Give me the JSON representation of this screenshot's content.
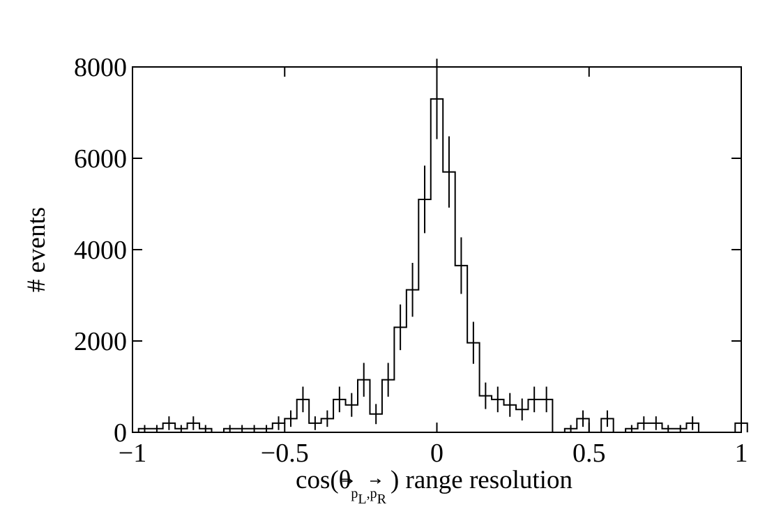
{
  "chart_data": {
    "type": "histogram",
    "xlabel": {
      "prefix": "cos(θ",
      "sub1": "p",
      "sub1_index": "L",
      "sep": ",",
      "sub2": "p",
      "sub2_index": "R",
      "suffix": ") range resolution"
    },
    "ylabel": "# events",
    "xlim": [
      -1,
      1
    ],
    "ylim": [
      0,
      8000
    ],
    "xticks": [
      -1,
      -0.5,
      0,
      0.5,
      1
    ],
    "xtick_labels": [
      "−1",
      "−0.5",
      "0",
      "0.5",
      "1"
    ],
    "yticks": [
      0,
      2000,
      4000,
      6000,
      8000
    ],
    "ytick_labels": [
      "0",
      "2000",
      "4000",
      "6000",
      "8000"
    ],
    "grid": false,
    "bin_edges": [
      -0.98,
      1.0
    ],
    "bin_width": 0.04,
    "values": [
      80,
      80,
      200,
      80,
      200,
      80,
      0,
      80,
      80,
      80,
      80,
      200,
      300,
      720,
      200,
      300,
      720,
      600,
      1150,
      400,
      1150,
      2300,
      3120,
      5100,
      7300,
      5700,
      3650,
      1960,
      800,
      720,
      600,
      500,
      720,
      720,
      0,
      80,
      300,
      0,
      300,
      0,
      80,
      200,
      200,
      80,
      80,
      200,
      0,
      0,
      0,
      200
    ],
    "errors": [
      80,
      80,
      150,
      80,
      150,
      80,
      0,
      80,
      80,
      80,
      80,
      150,
      180,
      280,
      150,
      180,
      280,
      260,
      370,
      220,
      370,
      500,
      590,
      740,
      880,
      780,
      620,
      460,
      290,
      280,
      260,
      240,
      280,
      280,
      0,
      80,
      180,
      0,
      180,
      0,
      80,
      150,
      150,
      80,
      80,
      150,
      0,
      0,
      0,
      150
    ]
  }
}
